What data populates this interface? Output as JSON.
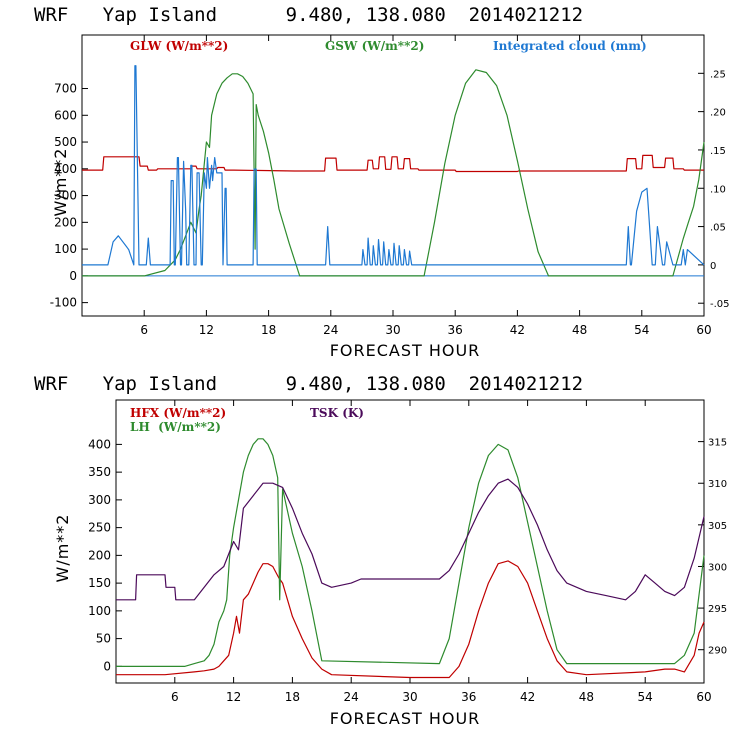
{
  "charts": [
    {
      "title": "WRF   Yap Island      9.480, 138.080  2014021212",
      "ylabel": "W/m**2",
      "xlabel": "FORECAST HOUR",
      "legend": [
        {
          "label": "GLW (W/m**2)",
          "color": "#c00000"
        },
        {
          "label": "GSW (W/m**2)",
          "color": "#2e8b2e"
        },
        {
          "label": "Integrated cloud (mm)",
          "color": "#1e78d2"
        }
      ]
    },
    {
      "title": "WRF   Yap Island      9.480, 138.080  2014021212",
      "ylabel": "W/m**2",
      "xlabel": "FORECAST HOUR",
      "legend": [
        {
          "label": "HFX (W/m**2)",
          "color": "#c00000"
        },
        {
          "label": "LH  (W/m**2)",
          "color": "#2e8b2e"
        },
        {
          "label": "TSK (K)",
          "color": "#4b0a5a"
        }
      ]
    }
  ],
  "chart_data": [
    {
      "type": "line",
      "title": "WRF Yap Island 9.480, 138.080 2014021212",
      "xlabel": "FORECAST HOUR",
      "ylabel": "W/m**2",
      "xlim": [
        0,
        60
      ],
      "ylim": [
        -150,
        900
      ],
      "x_ticks": [
        6,
        12,
        18,
        24,
        30,
        36,
        42,
        48,
        54,
        60
      ],
      "x_tick_labels": [
        "6",
        "12",
        "18",
        "24",
        "30",
        "36",
        "42",
        "48",
        "54",
        "60"
      ],
      "y_ticks": [
        -100,
        0,
        100,
        200,
        300,
        400,
        500,
        600,
        700
      ],
      "y_tick_labels": [
        "-100",
        "0",
        "100",
        "200",
        "300",
        "400",
        "500",
        "600",
        "700"
      ],
      "y2lim": [
        -0.0667,
        0.3
      ],
      "y2_ticks": [
        -0.05,
        0,
        0.05,
        0.1,
        0.15,
        0.2,
        0.25
      ],
      "y2_tick_labels": [
        "-.05",
        "0",
        ".05",
        ".10",
        ".15",
        ".20",
        ".25"
      ],
      "series": [
        {
          "name": "GLW (W/m**2)",
          "axis": "left",
          "color": "#c00000",
          "x": [
            0,
            2.0,
            2.1,
            5.5,
            5.6,
            6.3,
            6.4,
            7.2,
            7.3,
            10.5,
            10.6,
            11.0,
            11.1,
            13.0,
            13.1,
            13.7,
            13.8,
            14.5,
            14.6,
            20.5,
            20.6,
            23.4,
            23.5,
            24.5,
            24.6,
            27.5,
            27.6,
            28.0,
            28.1,
            28.6,
            28.7,
            29.2,
            29.3,
            29.8,
            29.9,
            30.4,
            30.5,
            31.0,
            31.1,
            31.6,
            31.7,
            32.4,
            32.5,
            36.0,
            36.1,
            42.0,
            42.1,
            52.5,
            52.6,
            53.4,
            53.5,
            54.0,
            54.1,
            55.0,
            55.1,
            56.2,
            56.3,
            57.0,
            57.1,
            58.0,
            58.1,
            60
          ],
          "y": [
            395,
            395,
            445,
            445,
            410,
            410,
            395,
            395,
            400,
            400,
            410,
            410,
            400,
            400,
            405,
            405,
            395,
            395,
            395,
            392,
            392,
            392,
            440,
            440,
            395,
            395,
            432,
            432,
            400,
            400,
            445,
            445,
            398,
            398,
            445,
            445,
            400,
            400,
            438,
            438,
            400,
            400,
            395,
            395,
            390,
            390,
            392,
            392,
            438,
            438,
            400,
            400,
            450,
            450,
            405,
            405,
            440,
            440,
            400,
            400,
            395,
            395
          ]
        },
        {
          "name": "GSW (W/m**2)",
          "axis": "left",
          "color": "#2e8b2e",
          "x": [
            0,
            6.0,
            8.0,
            9.0,
            9.5,
            10.0,
            10.5,
            11.0,
            11.3,
            11.5,
            12.0,
            12.3,
            12.5,
            13.0,
            13.5,
            14.0,
            14.5,
            15.0,
            15.5,
            16.0,
            16.5,
            16.7,
            16.8,
            17.0,
            17.5,
            18.0,
            18.5,
            19.0,
            20.0,
            21.0,
            33.0,
            34.0,
            35.0,
            36.0,
            37.0,
            38.0,
            39.0,
            40.0,
            41.0,
            42.0,
            43.0,
            44.0,
            45.0,
            57.0,
            58.0,
            58.5,
            59.0,
            59.5,
            60
          ],
          "y": [
            0,
            0,
            20,
            60,
            100,
            150,
            200,
            160,
            250,
            300,
            500,
            480,
            600,
            680,
            720,
            740,
            755,
            755,
            745,
            720,
            680,
            100,
            640,
            600,
            540,
            460,
            360,
            250,
            120,
            0,
            0,
            200,
            420,
            600,
            720,
            770,
            760,
            710,
            600,
            430,
            250,
            90,
            0,
            0,
            140,
            200,
            260,
            360,
            500
          ]
        },
        {
          "name": "Integrated cloud (mm)",
          "axis": "right",
          "color": "#1e78d2",
          "x": [
            0,
            2.5,
            3.0,
            3.5,
            4.5,
            5.0,
            5.1,
            5.2,
            5.5,
            5.6,
            6.2,
            6.4,
            6.6,
            7.0,
            8.5,
            8.6,
            8.8,
            8.9,
            9.0,
            9.2,
            9.3,
            9.5,
            9.6,
            9.8,
            10.0,
            10.1,
            10.3,
            10.5,
            10.6,
            10.8,
            11.0,
            11.1,
            11.3,
            11.5,
            11.6,
            11.8,
            12.0,
            12.1,
            12.3,
            12.5,
            12.6,
            12.8,
            13.0,
            13.5,
            13.6,
            13.8,
            13.9,
            14.0,
            14.5,
            16.5,
            16.6,
            16.8,
            16.9,
            17.0,
            23.5,
            23.7,
            23.9,
            24.0,
            27.0,
            27.1,
            27.3,
            27.5,
            27.6,
            27.8,
            28.0,
            28.1,
            28.3,
            28.5,
            28.6,
            28.8,
            29.0,
            29.1,
            29.3,
            29.5,
            29.6,
            29.8,
            30.0,
            30.1,
            30.3,
            30.5,
            30.6,
            30.8,
            31.0,
            31.1,
            31.3,
            31.5,
            31.6,
            31.8,
            32.0,
            52.5,
            52.7,
            52.9,
            53.0,
            53.5,
            54.0,
            54.5,
            55.0,
            55.3,
            55.5,
            56.0,
            56.2,
            56.4,
            57.0,
            57.8,
            58.0,
            58.2,
            58.4,
            60
          ],
          "y": [
            0,
            0,
            0.03,
            0.038,
            0.02,
            0,
            0.26,
            0.26,
            0,
            0,
            0,
            0.035,
            0,
            0,
            0,
            0.11,
            0.11,
            0,
            0,
            0.14,
            0.14,
            0,
            0,
            0.135,
            0.07,
            0,
            0,
            0.13,
            0.13,
            0,
            0,
            0.12,
            0.12,
            0,
            0,
            0.12,
            0.1,
            0.14,
            0.1,
            0.13,
            0.11,
            0.14,
            0.12,
            0.12,
            0,
            0.1,
            0.1,
            0,
            0,
            0,
            0.125,
            0.125,
            0,
            0,
            0,
            0.05,
            0,
            0,
            0,
            0.02,
            0,
            0,
            0.035,
            0,
            0,
            0.025,
            0,
            0,
            0.033,
            0,
            0,
            0.03,
            0,
            0,
            0.02,
            0,
            0,
            0.028,
            0,
            0,
            0.025,
            0,
            0,
            0.02,
            0,
            0,
            0.018,
            0,
            0,
            0,
            0.05,
            0,
            0,
            0.07,
            0.095,
            0.1,
            0,
            0,
            0.05,
            0,
            0,
            0.03,
            0,
            0,
            0.02,
            0,
            0.02,
            0
          ]
        }
      ]
    },
    {
      "type": "line",
      "title": "WRF Yap Island 9.480, 138.080 2014021212",
      "xlabel": "FORECAST HOUR",
      "ylabel": "W/m**2",
      "xlim": [
        0,
        60
      ],
      "ylim": [
        -30,
        480
      ],
      "x_ticks": [
        6,
        12,
        18,
        24,
        30,
        36,
        42,
        48,
        54,
        60
      ],
      "x_tick_labels": [
        "6",
        "12",
        "18",
        "24",
        "30",
        "36",
        "42",
        "48",
        "54",
        "60"
      ],
      "y_ticks": [
        0,
        50,
        100,
        150,
        200,
        250,
        300,
        350,
        400
      ],
      "y_tick_labels": [
        "0",
        "50",
        "100",
        "150",
        "200",
        "250",
        "300",
        "350",
        "400"
      ],
      "y2lim": [
        286,
        320
      ],
      "y2_ticks": [
        290,
        295,
        300,
        305,
        310,
        315
      ],
      "y2_tick_labels": [
        "290",
        "295",
        "300",
        "305",
        "310",
        "315"
      ],
      "series": [
        {
          "name": "HFX (W/m**2)",
          "axis": "left",
          "color": "#c00000",
          "x": [
            0,
            5,
            8,
            9,
            10,
            10.5,
            11,
            11.5,
            12,
            12.3,
            12.6,
            13,
            13.5,
            14,
            14.5,
            15,
            15.5,
            16,
            16.3,
            16.6,
            17,
            17.5,
            18,
            19,
            20,
            21,
            22,
            30,
            34,
            35,
            36,
            37,
            38,
            39,
            40,
            41,
            42,
            43,
            44,
            45,
            46,
            48,
            54,
            56,
            57,
            58,
            59,
            59.5,
            60
          ],
          "y": [
            -15,
            -15,
            -10,
            -8,
            -5,
            0,
            10,
            20,
            60,
            90,
            60,
            120,
            130,
            150,
            170,
            185,
            185,
            180,
            170,
            160,
            150,
            120,
            90,
            50,
            15,
            -5,
            -15,
            -20,
            -20,
            0,
            40,
            100,
            150,
            185,
            190,
            180,
            150,
            100,
            50,
            10,
            -10,
            -15,
            -10,
            -5,
            -5,
            -10,
            20,
            60,
            80
          ]
        },
        {
          "name": "LH  (W/m**2)",
          "axis": "left",
          "color": "#2e8b2e",
          "x": [
            0,
            5,
            7,
            8,
            9,
            9.5,
            10,
            10.5,
            11,
            11.3,
            11.6,
            12,
            12.5,
            13,
            13.5,
            14,
            14.5,
            15,
            15.5,
            16,
            16.5,
            16.7,
            17,
            17.5,
            18,
            19,
            20,
            21,
            33,
            34,
            35,
            36,
            37,
            38,
            39,
            40,
            41,
            42,
            43,
            44,
            45,
            46,
            57,
            58,
            59,
            60
          ],
          "y": [
            0,
            0,
            0,
            5,
            10,
            20,
            40,
            80,
            100,
            120,
            200,
            250,
            300,
            350,
            380,
            400,
            410,
            410,
            400,
            380,
            340,
            120,
            320,
            280,
            240,
            180,
            100,
            10,
            5,
            50,
            150,
            250,
            330,
            380,
            400,
            390,
            340,
            260,
            180,
            100,
            30,
            5,
            5,
            20,
            60,
            200
          ]
        },
        {
          "name": "TSK (K)",
          "axis": "right",
          "color": "#4b0a5a",
          "x": [
            0,
            2,
            2.1,
            5,
            5.1,
            6,
            6.1,
            8,
            9,
            10,
            11,
            12,
            12.5,
            13,
            14,
            15,
            16,
            17,
            18,
            19,
            20,
            21,
            22,
            24,
            25,
            27,
            30,
            32,
            33,
            34,
            35,
            36,
            37,
            38,
            39,
            40,
            41,
            42,
            43,
            44,
            45,
            46,
            48,
            50,
            52,
            53,
            54,
            55,
            56,
            57,
            58,
            59,
            60
          ],
          "y": [
            296,
            296,
            299,
            299,
            297.5,
            297.5,
            296,
            296,
            297.5,
            299,
            300,
            303,
            302,
            307,
            308.5,
            310,
            310,
            309.5,
            307,
            304,
            301.5,
            298,
            297.5,
            298,
            298.5,
            298.5,
            298.5,
            298.5,
            298.5,
            299.5,
            301.5,
            304,
            306.5,
            308.5,
            310,
            310.5,
            309.5,
            307.5,
            305,
            302,
            299.5,
            298,
            297,
            296.5,
            296,
            297,
            299,
            298,
            297,
            296.5,
            297.5,
            301,
            306
          ]
        }
      ]
    }
  ]
}
